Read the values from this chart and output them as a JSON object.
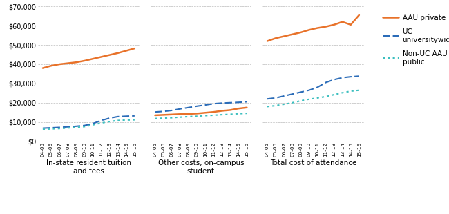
{
  "years": [
    "04-05",
    "05-06",
    "06-07",
    "07-08",
    "08-09",
    "09-10",
    "10-11",
    "11-12",
    "12-13",
    "13-14",
    "14-15",
    "15-16"
  ],
  "panel1": {
    "label": "In-state resident tuition\nand fees",
    "aau_private": [
      38000,
      39200,
      40000,
      40500,
      41000,
      41800,
      42800,
      43800,
      44800,
      45800,
      47000,
      48200
    ],
    "uc_univ": [
      6800,
      7000,
      7200,
      7500,
      7800,
      8200,
      9200,
      10800,
      12000,
      12800,
      13000,
      13200
    ],
    "nonuc_aau": [
      6200,
      6400,
      6600,
      6900,
      7200,
      7600,
      8500,
      9500,
      10200,
      10800,
      11000,
      11100
    ]
  },
  "panel2": {
    "label": "Other costs, on-campus\nstudent",
    "aau_private": [
      13500,
      13700,
      13900,
      14100,
      14200,
      14400,
      14800,
      15200,
      15800,
      16200,
      17000,
      17500
    ],
    "uc_univ": [
      15200,
      15500,
      16000,
      16800,
      17500,
      18200,
      18800,
      19500,
      19800,
      20000,
      20200,
      20500
    ],
    "nonuc_aau": [
      11800,
      12000,
      12200,
      12500,
      12800,
      13000,
      13300,
      13500,
      13800,
      14000,
      14300,
      14500
    ]
  },
  "panel3": {
    "label": "Total cost of attendance",
    "aau_private": [
      52000,
      53500,
      54500,
      55500,
      56500,
      57800,
      58800,
      59500,
      60500,
      62000,
      60500,
      65500
    ],
    "uc_univ": [
      22000,
      22500,
      23500,
      24500,
      25500,
      26500,
      28000,
      30500,
      32000,
      33000,
      33500,
      33800
    ],
    "nonuc_aau": [
      18000,
      18500,
      19200,
      20000,
      21000,
      21800,
      22500,
      23200,
      24200,
      25200,
      26000,
      26500
    ]
  },
  "aau_color": "#E8722A",
  "uc_color": "#2B6CB8",
  "nonuc_color": "#3BBFBF",
  "ylim": [
    0,
    70000
  ],
  "yticks": [
    0,
    10000,
    20000,
    30000,
    40000,
    50000,
    60000,
    70000
  ]
}
